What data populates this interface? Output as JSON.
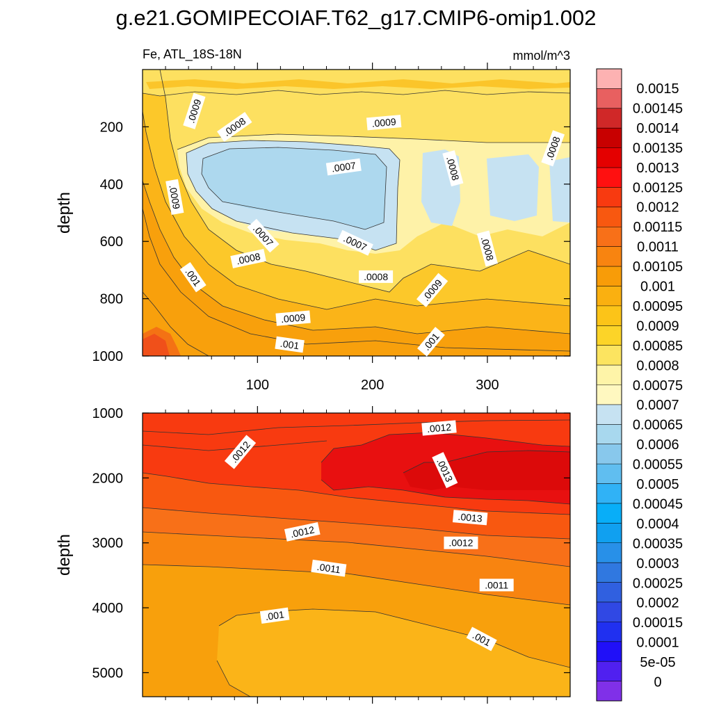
{
  "chart_data": {
    "type": "contour",
    "title": "g.e21.GOMIPECOIAF.T62_g17.CMIP6-omip1.002",
    "variable_label": "Fe, ATL_18S-18N",
    "units_label": "mmol/m^3",
    "x_ticks": [
      "100",
      "200",
      "300"
    ],
    "x_range": [
      0,
      372
    ],
    "panels": [
      {
        "name": "upper",
        "ylabel": "depth",
        "ylim": [
          0,
          1000
        ],
        "y_ticks": [
          {
            "value": 200,
            "label": "200"
          },
          {
            "value": 400,
            "label": "400"
          },
          {
            "value": 600,
            "label": "600"
          },
          {
            "value": 800,
            "label": "800"
          },
          {
            "value": 1000,
            "label": "1000"
          }
        ],
        "contour_labels": [
          {
            "text": ".0009",
            "x": 45,
            "y": 145,
            "angle": -72
          },
          {
            "text": ".0008",
            "x": 80,
            "y": 200,
            "angle": -35
          },
          {
            "text": ".0009",
            "x": 210,
            "y": 185,
            "angle": -5
          },
          {
            "text": ".0007",
            "x": 175,
            "y": 340,
            "angle": -8
          },
          {
            "text": ".0008",
            "x": 270,
            "y": 345,
            "angle": 75
          },
          {
            "text": ".0008",
            "x": 357,
            "y": 275,
            "angle": -70
          },
          {
            "text": ".0009",
            "x": 28,
            "y": 445,
            "angle": 80
          },
          {
            "text": ".0007",
            "x": 105,
            "y": 580,
            "angle": 48
          },
          {
            "text": ".0007",
            "x": 185,
            "y": 605,
            "angle": 25
          },
          {
            "text": ".0008",
            "x": 300,
            "y": 625,
            "angle": 75
          },
          {
            "text": ".0008",
            "x": 92,
            "y": 660,
            "angle": -12
          },
          {
            "text": ".001",
            "x": 44,
            "y": 725,
            "angle": 55
          },
          {
            "text": ".0008",
            "x": 203,
            "y": 723,
            "angle": 0
          },
          {
            "text": ".0009",
            "x": 252,
            "y": 770,
            "angle": -50
          },
          {
            "text": ".0009",
            "x": 131,
            "y": 868,
            "angle": -5
          },
          {
            "text": ".001",
            "x": 128,
            "y": 960,
            "angle": 8
          },
          {
            "text": ".001",
            "x": 251,
            "y": 950,
            "angle": -50
          }
        ]
      },
      {
        "name": "lower",
        "ylabel": "depth",
        "ylim": [
          1000,
          5370
        ],
        "y_ticks": [
          {
            "value": 1000,
            "label": "1000"
          },
          {
            "value": 2000,
            "label": "2000"
          },
          {
            "value": 3000,
            "label": "3000"
          },
          {
            "value": 4000,
            "label": "4000"
          },
          {
            "value": 5000,
            "label": "5000"
          }
        ],
        "contour_labels": [
          {
            "text": ".0012",
            "x": 85,
            "y": 1600,
            "angle": -50
          },
          {
            "text": ".0012",
            "x": 258,
            "y": 1230,
            "angle": -5
          },
          {
            "text": ".0013",
            "x": 263,
            "y": 1880,
            "angle": 65
          },
          {
            "text": ".0013",
            "x": 285,
            "y": 2610,
            "angle": 5
          },
          {
            "text": ".0012",
            "x": 139,
            "y": 2830,
            "angle": -12
          },
          {
            "text": ".0012",
            "x": 277,
            "y": 3000,
            "angle": 0
          },
          {
            "text": ".0011",
            "x": 162,
            "y": 3390,
            "angle": 8
          },
          {
            "text": ".0011",
            "x": 308,
            "y": 3650,
            "angle": 0
          },
          {
            "text": ".001",
            "x": 115,
            "y": 4120,
            "angle": -8
          },
          {
            "text": ".001",
            "x": 295,
            "y": 4480,
            "angle": 28
          }
        ]
      }
    ],
    "colorbar": {
      "labels": [
        "0.0015",
        "0.00145",
        "0.0014",
        "0.00135",
        "0.0013",
        "0.00125",
        "0.0012",
        "0.00115",
        "0.0011",
        "0.00105",
        "0.001",
        "0.00095",
        "0.0009",
        "0.00085",
        "0.0008",
        "0.00075",
        "0.0007",
        "0.00065",
        "0.0006",
        "0.00055",
        "0.0005",
        "0.00045",
        "0.0004",
        "0.00035",
        "0.0003",
        "0.00025",
        "0.0002",
        "0.00015",
        "0.0001",
        "5e-05",
        "0"
      ],
      "colors": [
        "#fdb2b2",
        "#e86060",
        "#d02828",
        "#c80000",
        "#e40000",
        "#ff1010",
        "#f83a10",
        "#f85810",
        "#f87018",
        "#f88410",
        "#f89c08",
        "#fab010",
        "#fcc418",
        "#fcd428",
        "#fce460",
        "#fef4a8",
        "#fff8c0",
        "#c6e2f2",
        "#a8d8ee",
        "#88c8ec",
        "#60bef0",
        "#30b2f6",
        "#08aef8",
        "#10a0f0",
        "#2890e8",
        "#3078e0",
        "#3060e0",
        "#3048e4",
        "#2030f0",
        "#2010f8",
        "#5020f0",
        "#8030e8"
      ]
    }
  }
}
